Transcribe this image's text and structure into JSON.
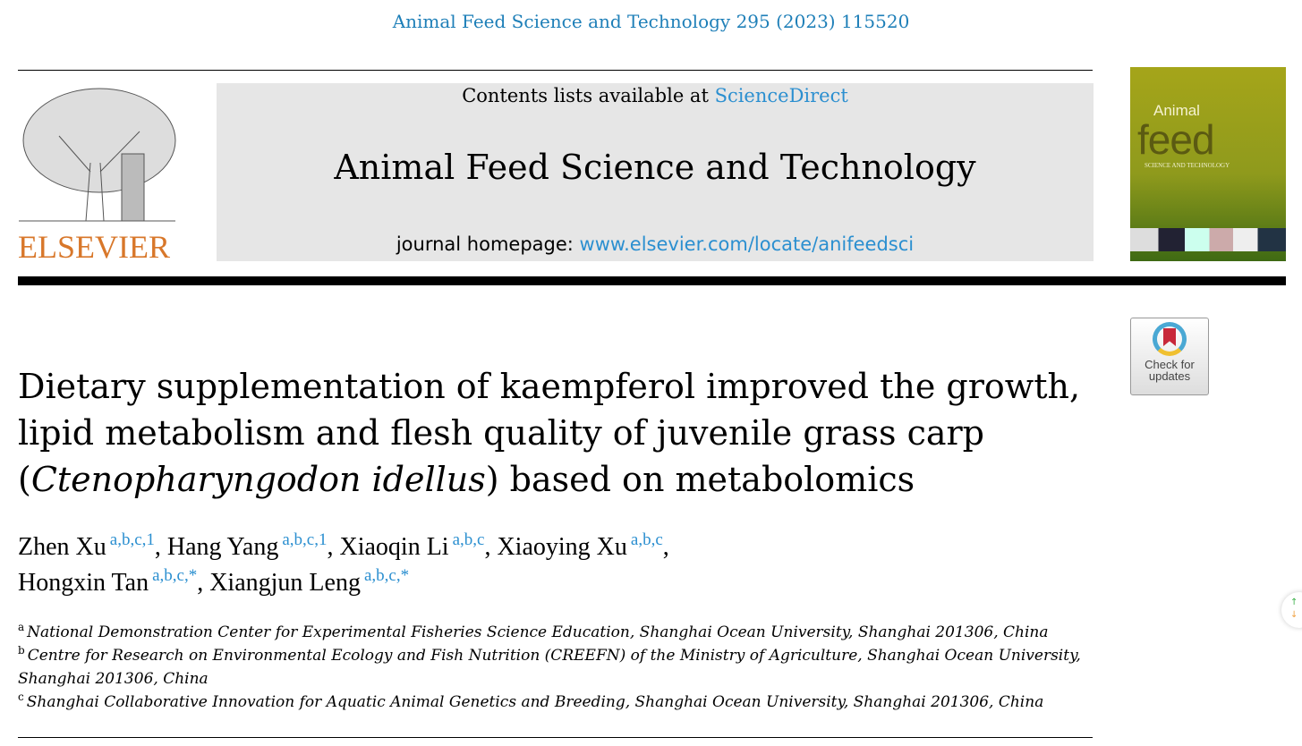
{
  "citation": "Animal Feed Science and Technology 295 (2023) 115520",
  "publisher_logo": "ELSEVIER",
  "banner": {
    "contents_prefix": "Contents lists available at ",
    "contents_link": "ScienceDirect",
    "journal_title": "Animal Feed Science and Technology",
    "homepage_prefix": "journal homepage: ",
    "homepage_link": "www.elsevier.com/locate/anifeedsci"
  },
  "cover": {
    "line1": "Animal",
    "line2": "feed",
    "line3": "SCIENCE AND TECHNOLOGY"
  },
  "check_updates": {
    "line1": "Check for",
    "line2": "updates"
  },
  "article": {
    "title_part1": "Dietary supplementation of kaempferol improved the growth, lipid metabolism and flesh quality of juvenile grass carp (",
    "title_species": "Ctenopharyngodon idellus",
    "title_part2": ") based on metabolomics",
    "authors": [
      {
        "name": "Zhen Xu",
        "sup": "a,b,c,1"
      },
      {
        "name": "Hang Yang",
        "sup": "a,b,c,1"
      },
      {
        "name": "Xiaoqin Li",
        "sup": "a,b,c"
      },
      {
        "name": "Xiaoying Xu",
        "sup": "a,b,c"
      },
      {
        "name": "Hongxin Tan",
        "sup": "a,b,c,*"
      },
      {
        "name": "Xiangjun Leng",
        "sup": "a,b,c,*"
      }
    ],
    "affiliations": [
      {
        "label": "a",
        "text": "National Demonstration Center for Experimental Fisheries Science Education, Shanghai Ocean University, Shanghai 201306, China"
      },
      {
        "label": "b",
        "text": "Centre for Research on Environmental Ecology and Fish Nutrition (CREEFN) of the Ministry of Agriculture, Shanghai Ocean University, Shanghai 201306, China"
      },
      {
        "label": "c",
        "text": "Shanghai Collaborative Innovation for Aquatic Animal Genetics and Breeding, Shanghai Ocean University, Shanghai 201306, China"
      }
    ]
  },
  "colors": {
    "link": "#2b8fd0",
    "citation": "#1e7fb8",
    "elsevier": "#d8772a"
  }
}
